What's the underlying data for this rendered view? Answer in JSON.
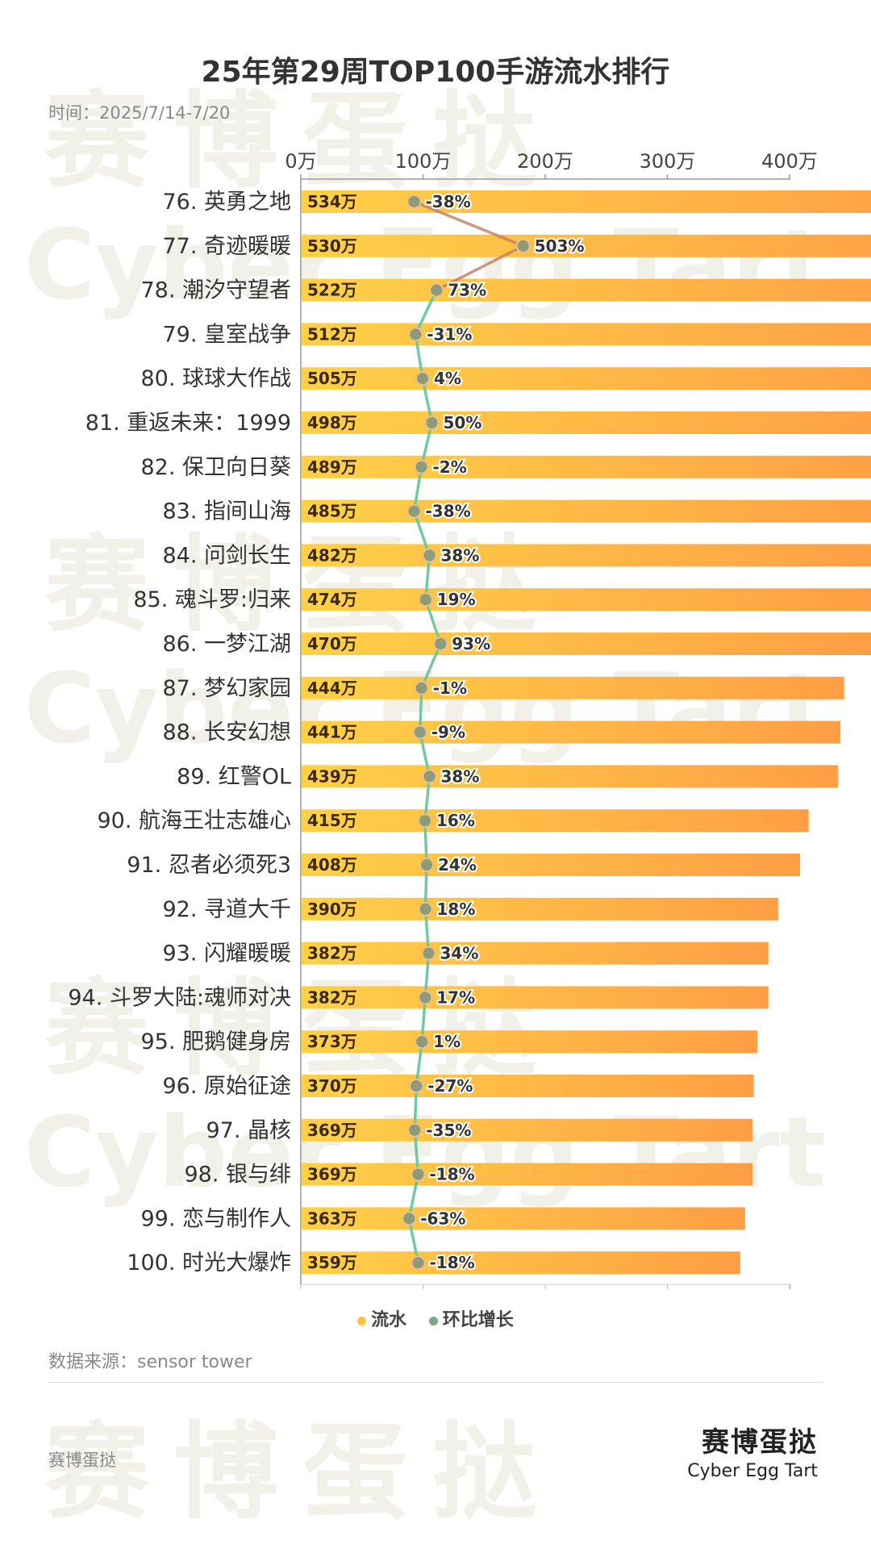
{
  "title": "25年第29周TOP100手游流水排行",
  "date_label": "时间：2025/7/14-7/20",
  "source_label": "数据来源：sensor tower",
  "footer_left": "赛博蛋挞",
  "brand": {
    "cn": "赛博蛋挞",
    "en": "Cyber Egg Tart"
  },
  "watermark": {
    "cn": "赛博蛋挞",
    "en": "Cyber Egg Tart"
  },
  "legend": [
    {
      "label": "流水",
      "color": "#FFC247"
    },
    {
      "label": "环比增长",
      "color": "#7aa880"
    }
  ],
  "chart_data": {
    "type": "bar",
    "orientation": "horizontal",
    "x_axis": {
      "range": [
        0,
        600
      ],
      "ticks": [
        0,
        100,
        200,
        300,
        400,
        500
      ],
      "tick_suffix": "万",
      "position": "top"
    },
    "categories": [
      "76. 英勇之地",
      "77. 奇迹暖暖",
      "78. 潮汐守望者",
      "79. 皇室战争",
      "80. 球球大作战",
      "81. 重返未来：1999",
      "82. 保卫向日葵",
      "83. 指间山海",
      "84. 问剑长生",
      "85. 魂斗罗:归来",
      "86. 一梦江湖",
      "87. 梦幻家园",
      "88. 长安幻想",
      "89. 红警OL",
      "90. 航海王壮志雄心",
      "91. 忍者必须死3",
      "92. 寻道大千",
      "93. 闪耀暖暖",
      "94. 斗罗大陆:魂师对决",
      "95. 肥鹅健身房",
      "96. 原始征途",
      "97. 晶核",
      "98. 银与绯",
      "99. 恋与制作人",
      "100. 时光大爆炸"
    ],
    "series": [
      {
        "name": "流水",
        "type": "bar",
        "values": [
          534,
          530,
          522,
          512,
          505,
          498,
          489,
          485,
          482,
          474,
          470,
          444,
          441,
          439,
          415,
          408,
          390,
          382,
          382,
          373,
          370,
          369,
          369,
          363,
          359
        ],
        "labels": [
          "534万",
          "530万",
          "522万",
          "512万",
          "505万",
          "498万",
          "489万",
          "485万",
          "482万",
          "474万",
          "470万",
          "444万",
          "441万",
          "439万",
          "415万",
          "408万",
          "390万",
          "382万",
          "382万",
          "373万",
          "370万",
          "369万",
          "369万",
          "363万",
          "359万"
        ]
      },
      {
        "name": "环比增长",
        "type": "line",
        "values": [
          -38,
          503,
          73,
          -31,
          4,
          50,
          -2,
          -38,
          38,
          19,
          93,
          -1,
          -9,
          38,
          16,
          24,
          18,
          34,
          17,
          1,
          -27,
          -35,
          -18,
          -63,
          -18
        ],
        "labels": [
          "-38%",
          "503%",
          "73%",
          "-31%",
          "4%",
          "50%",
          "-2%",
          "-38%",
          "38%",
          "19%",
          "93%",
          "-1%",
          "-9%",
          "38%",
          "16%",
          "24%",
          "18%",
          "34%",
          "17%",
          "1%",
          "-27%",
          "-35%",
          "-18%",
          "-63%",
          "-18%"
        ]
      }
    ],
    "colors": {
      "bar_start": "#FFD147",
      "bar_end": "#FF9E45",
      "line_positive": "#6cc79c",
      "line_negative": "#c47d63",
      "marker": "#8f9a78"
    },
    "grid": false,
    "legend_position": "bottom"
  }
}
